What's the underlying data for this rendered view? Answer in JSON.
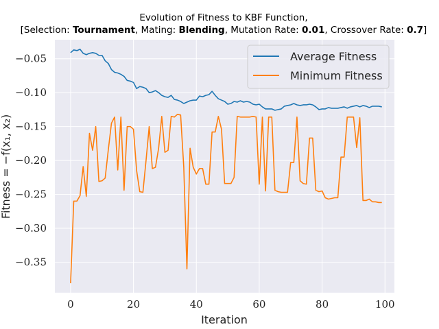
{
  "chart_data": {
    "type": "line",
    "title_line1": "Evolution of Fitness to KBF Function,",
    "title_line2": [
      {
        "text": "[Selection: ",
        "bold": false
      },
      {
        "text": "Tournament",
        "bold": true
      },
      {
        "text": ", Mating: ",
        "bold": false
      },
      {
        "text": "Blending",
        "bold": true
      },
      {
        "text": ", Mutation Rate: ",
        "bold": false
      },
      {
        "text": "0.01",
        "bold": true
      },
      {
        "text": ", Crossover Rate: ",
        "bold": false
      },
      {
        "text": "0.7",
        "bold": true
      },
      {
        "text": "]",
        "bold": false
      }
    ],
    "xlabel": "Iteration",
    "ylabel": "Fitness = −f(x₁, x₂)",
    "xlim": [
      -5,
      103
    ],
    "ylim": [
      -0.395,
      -0.022
    ],
    "xticks": [
      0,
      20,
      40,
      60,
      80,
      100
    ],
    "yticks": [
      -0.05,
      -0.1,
      -0.15,
      -0.2,
      -0.25,
      -0.3,
      -0.35
    ],
    "ytick_labels": [
      "−0.05",
      "−0.10",
      "−0.15",
      "−0.20",
      "−0.25",
      "−0.30",
      "−0.35"
    ],
    "grid": true,
    "legend_position": "top-right",
    "colors": {
      "background": "#eaeaf2",
      "grid": "#ffffff"
    },
    "series": [
      {
        "name": "Average Fitness",
        "color": "#1f77b4",
        "x": [
          0,
          1,
          2,
          3,
          4,
          5,
          6,
          7,
          8,
          9,
          10,
          11,
          12,
          13,
          14,
          15,
          16,
          17,
          18,
          19,
          20,
          21,
          22,
          23,
          24,
          25,
          26,
          27,
          28,
          29,
          30,
          31,
          32,
          33,
          34,
          35,
          36,
          37,
          38,
          39,
          40,
          41,
          42,
          43,
          44,
          45,
          46,
          47,
          48,
          49,
          50,
          51,
          52,
          53,
          54,
          55,
          56,
          57,
          58,
          59,
          60,
          61,
          62,
          63,
          64,
          65,
          66,
          67,
          68,
          69,
          70,
          71,
          72,
          73,
          74,
          75,
          76,
          77,
          78,
          79,
          80,
          81,
          82,
          83,
          84,
          85,
          86,
          87,
          88,
          89,
          90,
          91,
          92,
          93,
          94,
          95,
          96,
          97,
          98,
          99
        ],
        "values": [
          -0.041,
          -0.037,
          -0.038,
          -0.036,
          -0.042,
          -0.044,
          -0.042,
          -0.041,
          -0.042,
          -0.045,
          -0.045,
          -0.053,
          -0.057,
          -0.066,
          -0.07,
          -0.071,
          -0.073,
          -0.076,
          -0.082,
          -0.083,
          -0.085,
          -0.094,
          -0.091,
          -0.092,
          -0.094,
          -0.1,
          -0.099,
          -0.097,
          -0.1,
          -0.104,
          -0.106,
          -0.107,
          -0.104,
          -0.11,
          -0.111,
          -0.113,
          -0.116,
          -0.114,
          -0.112,
          -0.111,
          -0.111,
          -0.105,
          -0.106,
          -0.104,
          -0.103,
          -0.098,
          -0.104,
          -0.109,
          -0.111,
          -0.113,
          -0.117,
          -0.116,
          -0.113,
          -0.114,
          -0.112,
          -0.114,
          -0.113,
          -0.114,
          -0.117,
          -0.118,
          -0.117,
          -0.121,
          -0.124,
          -0.124,
          -0.124,
          -0.126,
          -0.125,
          -0.124,
          -0.12,
          -0.119,
          -0.118,
          -0.116,
          -0.118,
          -0.119,
          -0.118,
          -0.118,
          -0.117,
          -0.118,
          -0.121,
          -0.125,
          -0.124,
          -0.124,
          -0.122,
          -0.123,
          -0.123,
          -0.123,
          -0.122,
          -0.121,
          -0.123,
          -0.121,
          -0.12,
          -0.119,
          -0.121,
          -0.119,
          -0.12,
          -0.122,
          -0.12,
          -0.12,
          -0.12,
          -0.121
        ]
      },
      {
        "name": "Minimum Fitness",
        "color": "#ff7f0e",
        "x": [
          0,
          1,
          2,
          3,
          4,
          5,
          6,
          7,
          8,
          9,
          10,
          11,
          12,
          13,
          14,
          15,
          16,
          17,
          18,
          19,
          20,
          21,
          22,
          23,
          24,
          25,
          26,
          27,
          28,
          29,
          30,
          31,
          32,
          33,
          34,
          35,
          36,
          37,
          38,
          39,
          40,
          41,
          42,
          43,
          44,
          45,
          46,
          47,
          48,
          49,
          50,
          51,
          52,
          53,
          54,
          55,
          56,
          57,
          58,
          59,
          60,
          61,
          62,
          63,
          64,
          65,
          66,
          67,
          68,
          69,
          70,
          71,
          72,
          73,
          74,
          75,
          76,
          77,
          78,
          79,
          80,
          81,
          82,
          83,
          84,
          85,
          86,
          87,
          88,
          89,
          90,
          91,
          92,
          93,
          94,
          95,
          96,
          97,
          98,
          99
        ],
        "values": [
          -0.381,
          -0.26,
          -0.26,
          -0.252,
          -0.209,
          -0.253,
          -0.16,
          -0.185,
          -0.15,
          -0.231,
          -0.23,
          -0.226,
          -0.184,
          -0.145,
          -0.136,
          -0.214,
          -0.136,
          -0.244,
          -0.15,
          -0.15,
          -0.154,
          -0.215,
          -0.246,
          -0.247,
          -0.2,
          -0.15,
          -0.212,
          -0.21,
          -0.182,
          -0.135,
          -0.188,
          -0.185,
          -0.135,
          -0.136,
          -0.132,
          -0.133,
          -0.21,
          -0.36,
          -0.182,
          -0.21,
          -0.22,
          -0.212,
          -0.212,
          -0.235,
          -0.235,
          -0.158,
          -0.158,
          -0.135,
          -0.154,
          -0.234,
          -0.234,
          -0.234,
          -0.225,
          -0.135,
          -0.136,
          -0.136,
          -0.136,
          -0.136,
          -0.135,
          -0.136,
          -0.235,
          -0.136,
          -0.245,
          -0.136,
          -0.136,
          -0.244,
          -0.246,
          -0.247,
          -0.247,
          -0.247,
          -0.203,
          -0.203,
          -0.136,
          -0.23,
          -0.234,
          -0.235,
          -0.167,
          -0.167,
          -0.244,
          -0.246,
          -0.245,
          -0.255,
          -0.257,
          -0.256,
          -0.255,
          -0.255,
          -0.195,
          -0.195,
          -0.136,
          -0.136,
          -0.136,
          -0.181,
          -0.137,
          -0.259,
          -0.259,
          -0.257,
          -0.261,
          -0.261,
          -0.262,
          -0.262
        ]
      }
    ]
  }
}
